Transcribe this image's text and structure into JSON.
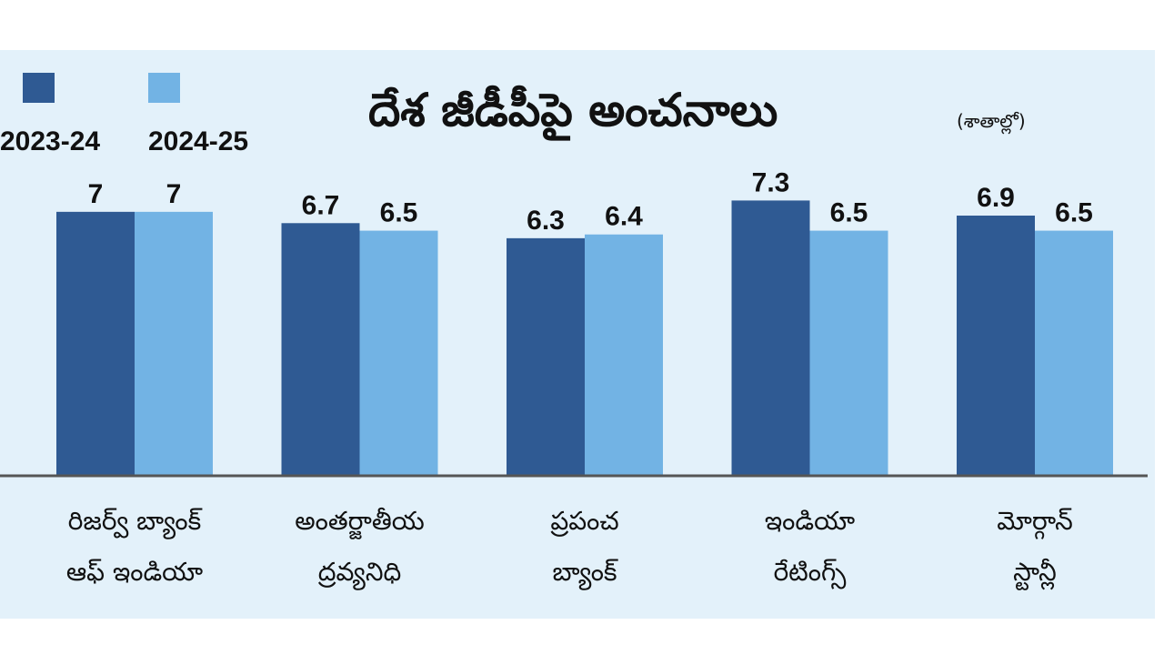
{
  "chart_data": {
    "type": "bar",
    "title": "దేశ జీడీపీపై అంచనాలు",
    "subtitle": "(శాతాల్లో)",
    "categories": [
      "రిజర్వ్ బ్యాంక్\nఆఫ్ ఇండియా",
      "అంతర్జాతీయ\nద్రవ్యనిధి",
      "ప్రపంచ\nబ్యాంక్",
      "ఇండియా\nరేటింగ్స్",
      "మోర్గాన్\nస్టాన్లీ"
    ],
    "series": [
      {
        "name": "2023-24",
        "color": "#2f5a93",
        "values": [
          7,
          6.7,
          6.3,
          7.3,
          6.9
        ]
      },
      {
        "name": "2024-25",
        "color": "#72b3e4",
        "values": [
          7,
          6.5,
          6.4,
          6.5,
          6.5
        ]
      }
    ],
    "legend": "top-left"
  }
}
